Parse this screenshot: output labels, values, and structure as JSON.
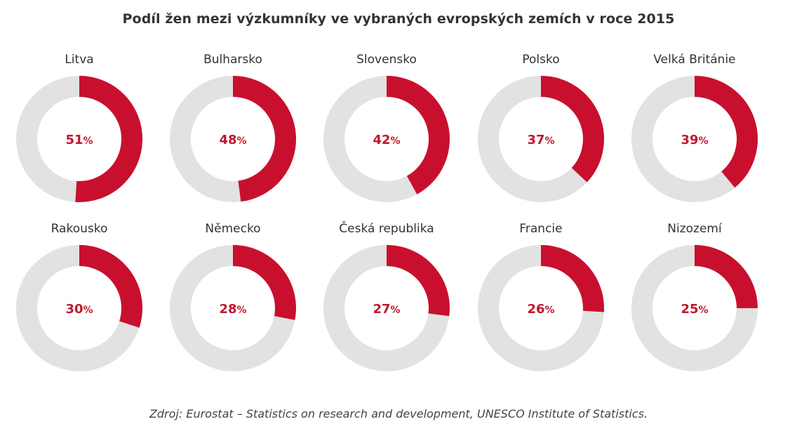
{
  "chart_data": {
    "type": "pie",
    "subtype": "donut-grid",
    "title": "Podíl žen mezi výzkumníky ve vybraných evropských zemích v roce 2015",
    "unit": "%",
    "categories": [
      "Litva",
      "Bulharsko",
      "Slovensko",
      "Polsko",
      "Velká Británie",
      "Rakousko",
      "Německo",
      "Česká republika",
      "Francie",
      "Nizozemí"
    ],
    "values": [
      51,
      48,
      42,
      37,
      39,
      30,
      28,
      27,
      26,
      25
    ],
    "colors": {
      "filled": "#c8102e",
      "track": "#e2e2e2",
      "value_text": "#c0182d"
    },
    "source": "Zdroj: Eurostat – Statistics on research and development, UNESCO Institute of Statistics."
  }
}
